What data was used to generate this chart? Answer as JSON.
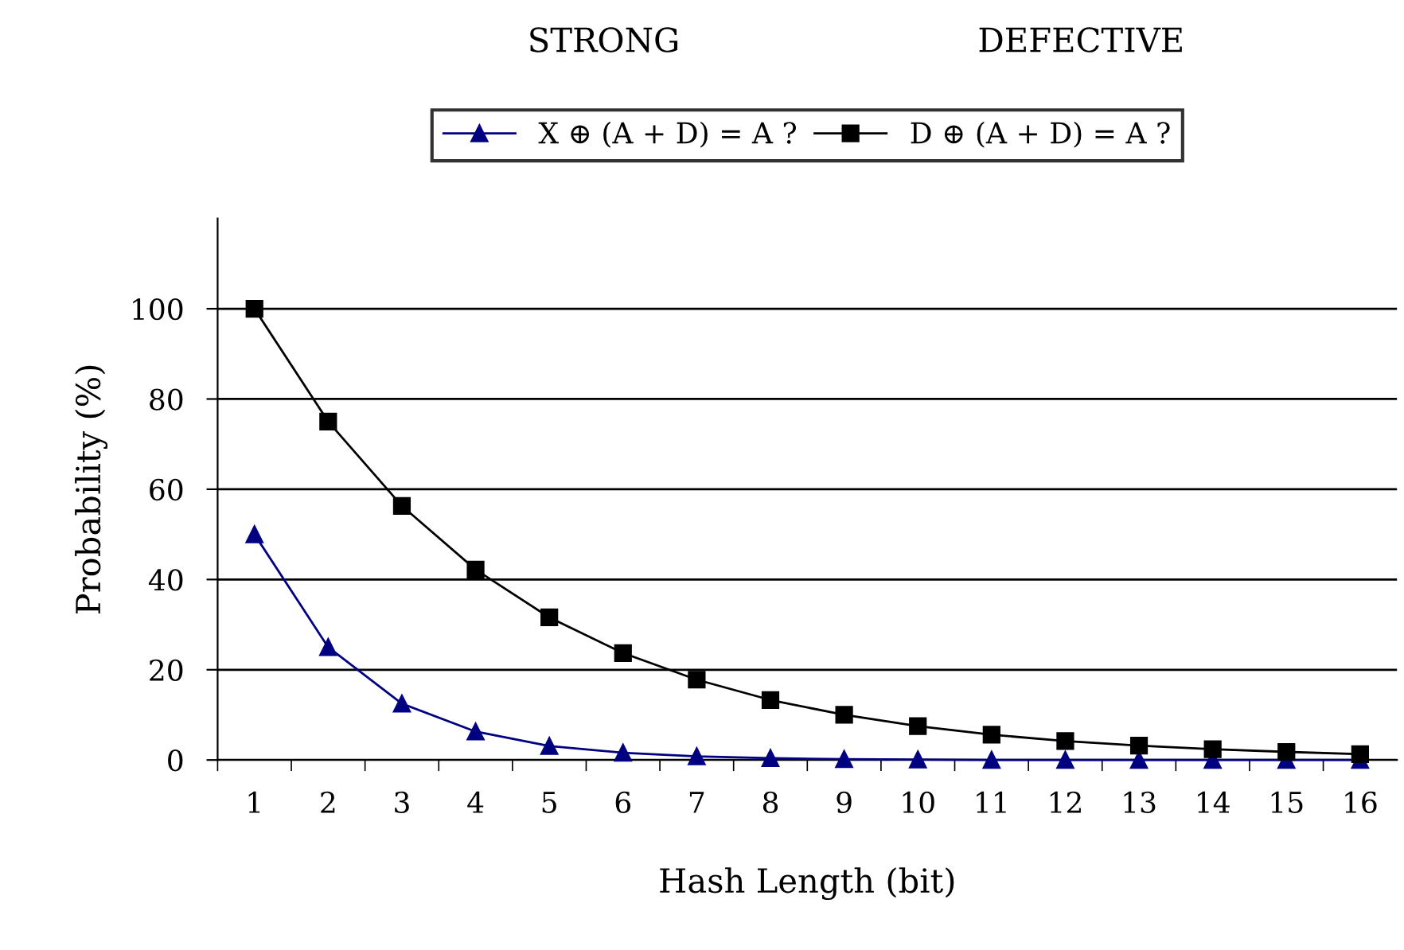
{
  "chart_data": {
    "type": "line",
    "xlabel": "Hash Length (bit)",
    "ylabel": "Probability (%)",
    "categories": [
      "1",
      "2",
      "3",
      "4",
      "5",
      "6",
      "7",
      "8",
      "9",
      "10",
      "11",
      "12",
      "13",
      "14",
      "15",
      "16"
    ],
    "series": [
      {
        "name": "X ⊕ (A + D) = A ?",
        "color": "#000080",
        "marker": "triangle",
        "values": [
          50,
          25,
          12.5,
          6.3,
          3.1,
          1.6,
          0.8,
          0.4,
          0.2,
          0.1,
          0,
          0,
          0,
          0,
          0,
          0
        ]
      },
      {
        "name": "D ⊕ (A + D) = A ?",
        "color": "#000000",
        "marker": "square",
        "values": [
          100,
          75,
          56.3,
          42.2,
          31.6,
          23.7,
          17.8,
          13.3,
          10,
          7.5,
          5.6,
          4.2,
          3.2,
          2.4,
          1.8,
          1.3
        ]
      }
    ],
    "ylim": [
      0,
      120
    ],
    "yticks": [
      0,
      20,
      40,
      60,
      80,
      100
    ],
    "grid": "y",
    "legend": "top",
    "annotations": [
      "STRONG",
      "DEFECTIVE"
    ]
  }
}
